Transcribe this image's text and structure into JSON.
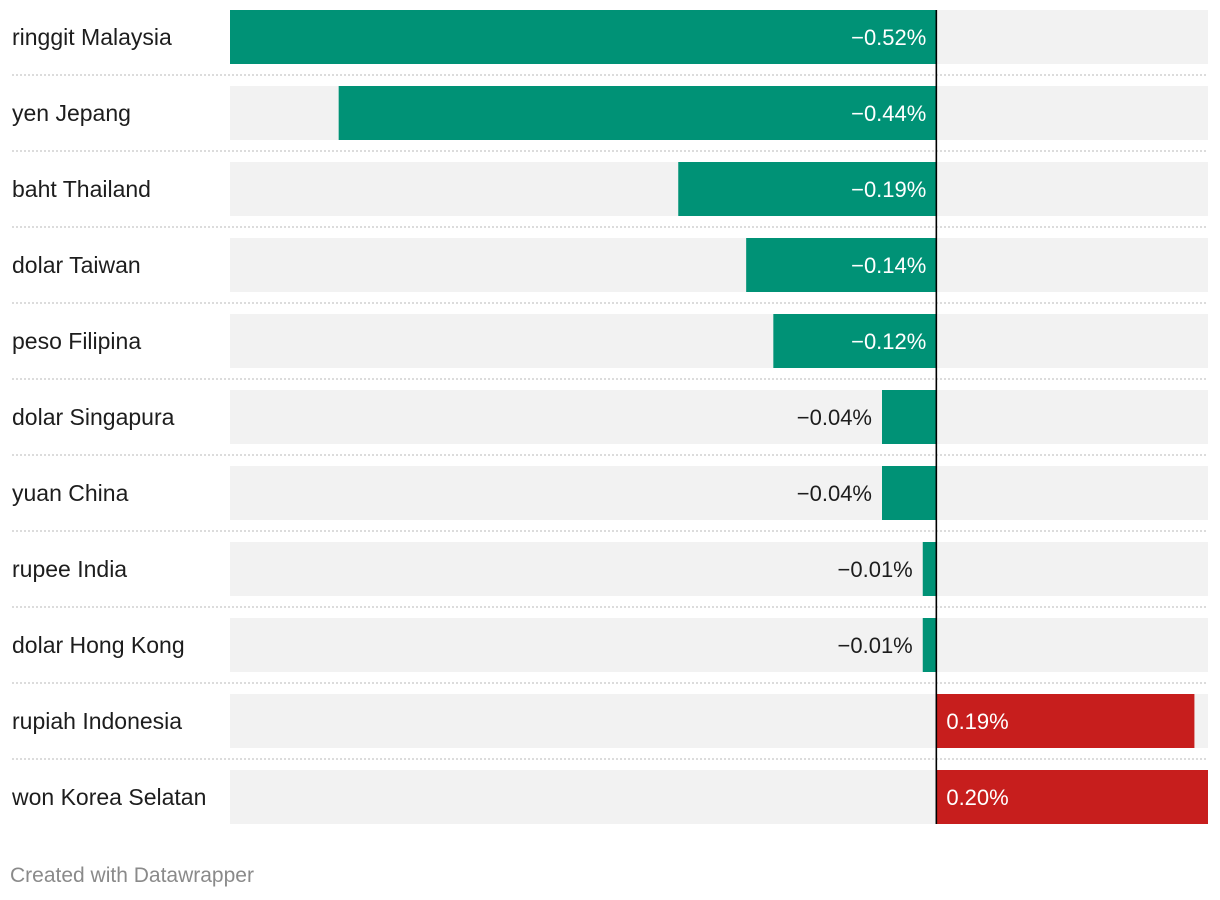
{
  "chart_data": {
    "type": "bar",
    "orientation": "horizontal",
    "categories": [
      "ringgit Malaysia",
      "yen Jepang",
      "baht Thailand",
      "dolar Taiwan",
      "peso Filipina",
      "dolar Singapura",
      "yuan China",
      "rupee India",
      "dolar Hong Kong",
      "rupiah Indonesia",
      "won Korea Selatan"
    ],
    "values": [
      -0.52,
      -0.44,
      -0.19,
      -0.14,
      -0.12,
      -0.04,
      -0.04,
      -0.01,
      -0.01,
      0.19,
      0.2
    ],
    "value_labels": [
      "−0.52%",
      "−0.44%",
      "−0.19%",
      "−0.14%",
      "−0.12%",
      "−0.04%",
      "−0.04%",
      "−0.01%",
      "−0.01%",
      "0.19%",
      "0.20%"
    ],
    "xlim": [
      -0.52,
      0.2
    ],
    "colors": {
      "negative": "#009276",
      "positive": "#c71e1d",
      "background_bar": "#f2f2f2",
      "zero_line": "#000000"
    },
    "grid": false,
    "legend": "none"
  },
  "footer": {
    "credit": "Created with Datawrapper"
  }
}
